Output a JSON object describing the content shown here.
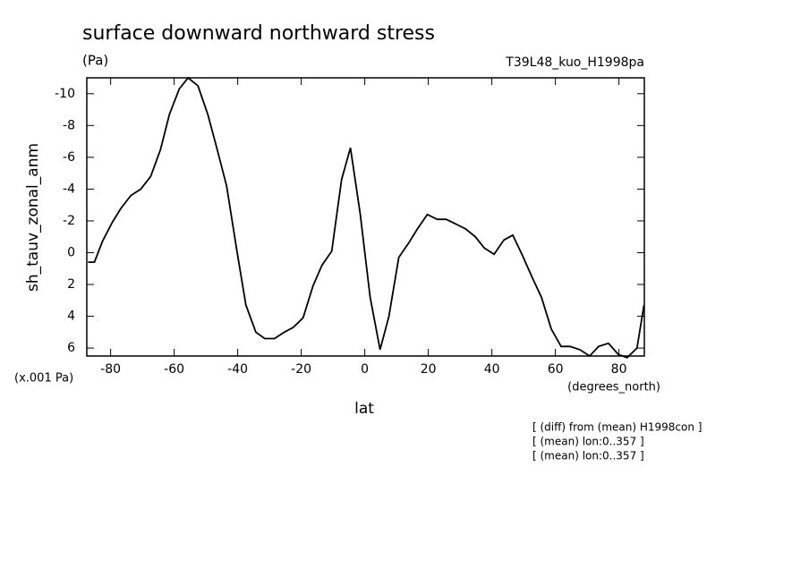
{
  "chart_data": {
    "type": "line",
    "title": "surface downward northward stress",
    "unit": "(Pa)",
    "experiment": "T39L48_kuo_H1998pa",
    "y_label": "sh_tauv_zonal_anm",
    "y_scale_note": "(x.001 Pa)",
    "x_unit": "(degrees_north)",
    "x_label": "lat",
    "notes": [
      "[ (diff) from (mean) H1998con ]",
      "[ (mean) lon:0..357 ]",
      "[ (mean) lon:0..357 ]"
    ],
    "xlim": [
      -87.5,
      88
    ],
    "ylim": [
      6.5,
      -11
    ],
    "xticks": [
      -80,
      -60,
      -40,
      -20,
      0,
      20,
      40,
      60,
      80
    ],
    "yticks": [
      -10,
      -8,
      -6,
      -4,
      -2,
      0,
      2,
      4,
      6
    ],
    "color": "#000000",
    "x": [
      -87.1,
      -85.1,
      -82.6,
      -79.5,
      -76.7,
      -73.6,
      -70.5,
      -67.4,
      -64.3,
      -61.5,
      -58.4,
      -55.6,
      -52.5,
      -49.4,
      -46.6,
      -43.5,
      -40.4,
      -37.4,
      -34.3,
      -31.5,
      -28.4,
      -25.3,
      -22.5,
      -19.4,
      -16.3,
      -13.5,
      -10.4,
      -7.3,
      -4.5,
      -1.4,
      1.7,
      4.8,
      7.6,
      10.7,
      13.8,
      16.6,
      19.7,
      22.8,
      25.6,
      28.7,
      31.7,
      34.8,
      37.6,
      40.7,
      43.8,
      46.6,
      49.7,
      52.8,
      55.6,
      58.7,
      61.8,
      64.6,
      67.7,
      70.8,
      73.6,
      76.7,
      79.8,
      82.6,
      85.7,
      87.9
    ],
    "values": [
      0.6,
      0.6,
      -0.7,
      -1.9,
      -2.8,
      -3.6,
      -4.0,
      -4.8,
      -6.5,
      -8.7,
      -10.3,
      -11.0,
      -10.5,
      -8.7,
      -6.6,
      -4.2,
      -0.3,
      3.3,
      5.0,
      5.4,
      5.4,
      5.0,
      4.7,
      4.1,
      2.1,
      0.8,
      -0.1,
      -4.6,
      -6.6,
      -2.4,
      2.8,
      6.1,
      4.0,
      0.3,
      -0.6,
      -1.5,
      -2.4,
      -2.1,
      -2.1,
      -1.8,
      -1.5,
      -1.0,
      -0.3,
      0.1,
      -0.8,
      -1.1,
      0.2,
      1.6,
      2.8,
      4.8,
      5.9,
      5.9,
      6.1,
      6.5,
      5.9,
      5.7,
      6.4,
      6.6,
      6.0,
      3.3
    ]
  }
}
